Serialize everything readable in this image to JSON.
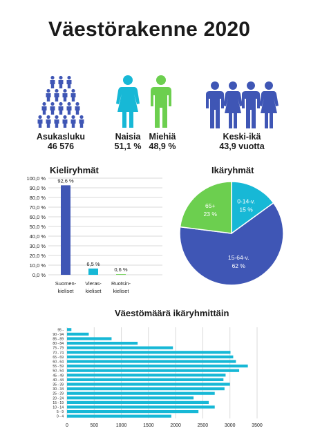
{
  "page": {
    "title": "Väestörakenne 2020",
    "colors": {
      "blue": "#3f56b5",
      "teal": "#17b8d6",
      "green": "#6ccf4f",
      "grid": "#d9d9d9",
      "text": "#1a1a1a"
    }
  },
  "stats": {
    "population": {
      "label": "Asukasluku",
      "value": "46 576",
      "icon": "people-pyramid-icon"
    },
    "women": {
      "label": "Naisia",
      "value": "51,1 %",
      "icon": "woman-icon"
    },
    "men": {
      "label": "Miehiä",
      "value": "48,9 %",
      "icon": "man-icon"
    },
    "age": {
      "label": "Keski-ikä",
      "value": "43,9 vuotta",
      "icon": "family-icon"
    }
  },
  "chart_data": [
    {
      "type": "bar",
      "title": "Kieliryhmät",
      "categories": [
        [
          "Suomen-",
          "kieliset"
        ],
        [
          "Vieras-",
          "kieliset"
        ],
        [
          "Ruotsin-",
          "kieliset"
        ]
      ],
      "values": [
        92.6,
        6.5,
        0.6
      ],
      "data_labels": [
        "92,6  %",
        "6,5 %",
        "0,6 %"
      ],
      "bar_colors": [
        "#3f56b5",
        "#17b8d6",
        "#6ccf4f"
      ],
      "yticks": [
        "0,0 %",
        "10,0 %",
        "20,0 %",
        "30,0 %",
        "40,0 %",
        "50,0 %",
        "60,0 %",
        "70,0 %",
        "80,0 %",
        "90,0 %",
        "100,0 %"
      ],
      "ylim": [
        0,
        100
      ],
      "grid": true
    },
    {
      "type": "pie",
      "title": "Ikäryhmät",
      "slices": [
        {
          "name": "0-14-v.",
          "label": "15 %",
          "value": 15,
          "color": "#17b8d6"
        },
        {
          "name": "15-64-v.",
          "label": "62 %",
          "value": 62,
          "color": "#3f56b5"
        },
        {
          "name": "65+",
          "label": "23 %",
          "value": 23,
          "color": "#6ccf4f"
        }
      ]
    },
    {
      "type": "bar",
      "orientation": "horizontal",
      "title": "Väestömäärä ikäryhmittäin",
      "categories": [
        "95 -",
        "90 - 94",
        "85 - 89",
        "80 - 84",
        "75 - 79",
        "70 - 74",
        "65 - 69",
        "60 - 64",
        "55 - 59",
        "50 - 54",
        "45 - 49",
        "40 - 44",
        "35 - 39",
        "30 - 34",
        "25 - 29",
        "20 - 24",
        "15 - 19",
        "10 - 14",
        "5 - 9",
        "0 - 4"
      ],
      "values": [
        80,
        400,
        820,
        1300,
        1950,
        3010,
        3060,
        3110,
        3330,
        3170,
        2920,
        2880,
        3000,
        2900,
        2720,
        2330,
        2610,
        2720,
        2420,
        1920
      ],
      "xticks": [
        "0",
        "500",
        "1000",
        "1500",
        "2000",
        "2500",
        "3000",
        "3500"
      ],
      "xlim": [
        0,
        3500
      ],
      "color": "#17b8d6",
      "grid": true
    }
  ]
}
